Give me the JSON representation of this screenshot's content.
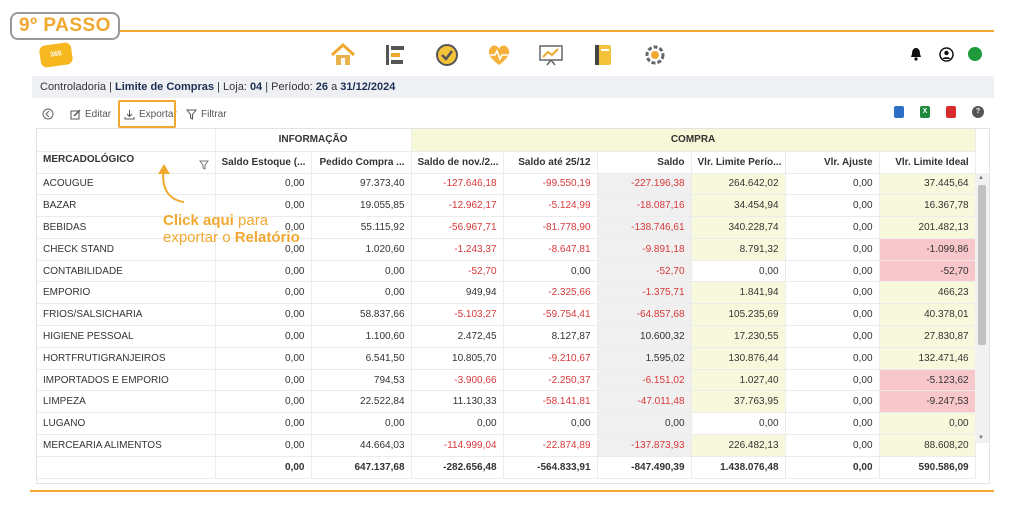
{
  "step": {
    "label": "9º PASSO"
  },
  "topbar": {
    "logo_text": "365",
    "nav_icons": [
      "home-icon",
      "bars-icon",
      "check-circle-icon",
      "heart-pulse-icon",
      "chart-board-icon",
      "notebook-icon",
      "settings-gear-icon"
    ],
    "right_icons": [
      "bell-icon",
      "user-circle-icon",
      "status-dot"
    ]
  },
  "breadcrumb": {
    "prefix": "Controladoria | ",
    "page": "Limite de Compras",
    "loja_label": " | Loja: ",
    "loja": "04",
    "periodo_label": " | Período: ",
    "periodo_start": "26",
    "periodo_sep": " a ",
    "periodo_end": "31/12/2024"
  },
  "toolbar": {
    "editar": "Editar",
    "exportar": "Exportar",
    "filtrar": "Filtrar"
  },
  "callout": {
    "bold": "Click aqui",
    "text1": " para",
    "text2": "exportar o ",
    "bold2": "Relatório"
  },
  "grid": {
    "group_info": "INFORMAÇÃO",
    "group_compra": "COMPRA",
    "col_mercadologico": "MERCADOLÓGICO",
    "cols": [
      "Saldo Estoque (...",
      "Pedido Compra ...",
      "Saldo de nov./2...",
      "Saldo até 25/12",
      "Saldo",
      "Vlr. Limite Perío...",
      "Vlr. Ajuste",
      "Vlr. Limite Ideal"
    ],
    "rows": [
      [
        "ACOUGUE",
        "0,00",
        "97.373,40",
        "-127.646,18",
        "-99.550,19",
        "-227.196,38",
        "264.642,02",
        "0,00",
        "37.445,64"
      ],
      [
        "BAZAR",
        "0,00",
        "19.055,85",
        "-12.962,17",
        "-5.124,99",
        "-18.087,16",
        "34.454,94",
        "0,00",
        "16.367,78"
      ],
      [
        "BEBIDAS",
        "0,00",
        "55.115,92",
        "-56.967,71",
        "-81.778,90",
        "-138.746,61",
        "340.228,74",
        "0,00",
        "201.482,13"
      ],
      [
        "CHECK STAND",
        "0,00",
        "1.020,60",
        "-1.243,37",
        "-8.647,81",
        "-9.891,18",
        "8.791,32",
        "0,00",
        "-1.099,86"
      ],
      [
        "CONTABILIDADE",
        "0,00",
        "0,00",
        "-52,70",
        "0,00",
        "-52,70",
        "0,00",
        "0,00",
        "-52,70"
      ],
      [
        "EMPORIO",
        "0,00",
        "0,00",
        "949,94",
        "-2.325,66",
        "-1.375,71",
        "1.841,94",
        "0,00",
        "466,23"
      ],
      [
        "FRIOS/SALSICHARIA",
        "0,00",
        "58.837,66",
        "-5.103,27",
        "-59.754,41",
        "-64.857,68",
        "105.235,69",
        "0,00",
        "40.378,01"
      ],
      [
        "HIGIENE PESSOAL",
        "0,00",
        "1.100,60",
        "2.472,45",
        "8.127,87",
        "10.600,32",
        "17.230,55",
        "0,00",
        "27.830,87"
      ],
      [
        "HORTFRUTIGRANJEIROS",
        "0,00",
        "6.541,50",
        "10.805,70",
        "-9.210,67",
        "1.595,02",
        "130.876,44",
        "0,00",
        "132.471,46"
      ],
      [
        "IMPORTADOS E EMPORIO",
        "0,00",
        "794,53",
        "-3.900,66",
        "-2.250,37",
        "-6.151,02",
        "1.027,40",
        "0,00",
        "-5.123,62"
      ],
      [
        "LIMPEZA",
        "0,00",
        "22.522,84",
        "11.130,33",
        "-58.141,81",
        "-47.011,48",
        "37.763,95",
        "0,00",
        "-9.247,53"
      ],
      [
        "LUGANO",
        "0,00",
        "0,00",
        "0,00",
        "0,00",
        "0,00",
        "0,00",
        "0,00",
        "0,00"
      ],
      [
        "MERCEARIA ALIMENTOS",
        "0,00",
        "44.664,03",
        "-114.999,04",
        "-22.874,89",
        "-137.873,93",
        "226.482,13",
        "0,00",
        "88.608,20"
      ]
    ],
    "totals": [
      "",
      "0,00",
      "647.137,68",
      "-282.656,48",
      "-564.833,91",
      "-847.490,39",
      "1.438.076,48",
      "0,00",
      "590.586,09"
    ]
  }
}
